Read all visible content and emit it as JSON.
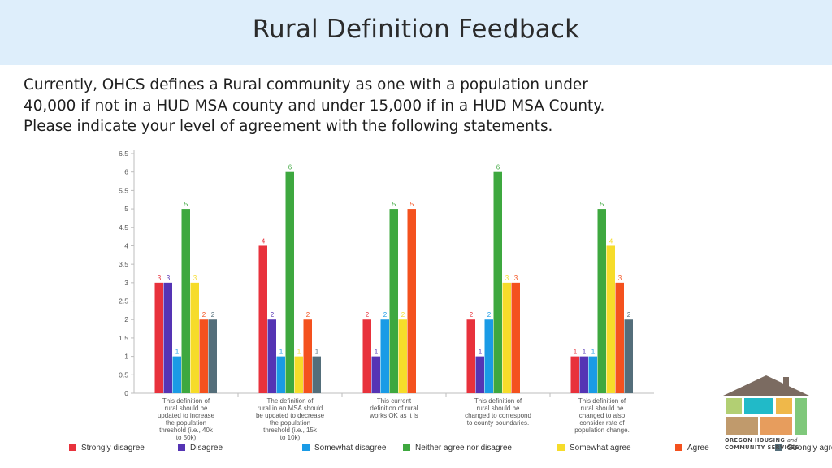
{
  "title": "Rural Definition Feedback",
  "intro": {
    "line1": "Currently, OHCS defines a Rural community as one with a population under",
    "line2": "40,000 if not in a HUD MSA county and under 15,000 if in a HUD MSA County.",
    "line3": "Please indicate your level of agreement with the following statements."
  },
  "logo": {
    "line1": "OREGON HOUSING",
    "and": "and",
    "line2": "COMMUNITY SERVICES"
  },
  "chart_data": {
    "type": "bar",
    "ylim": [
      0,
      6.5
    ],
    "yticks": [
      "0",
      "0.5",
      "1",
      "1.5",
      "2",
      "2.5",
      "3",
      "3.5",
      "4",
      "4.5",
      "5",
      "5.5",
      "6",
      "6.5"
    ],
    "categories": [
      [
        "This definition of",
        "rural should be",
        "updated to increase",
        "the population",
        "threshold (i.e., 40k",
        "to 50k)"
      ],
      [
        "The definition of",
        "rural in an MSA should",
        "be updated to decrease",
        "the population",
        "threshold (i.e., 15k",
        "to 10k)"
      ],
      [
        "This current",
        "definition of rural",
        "works OK as it is"
      ],
      [
        "This definition of",
        "rural should be",
        "changed to correspond",
        "to county boundaries."
      ],
      [
        "This definition of",
        "rural should be",
        "changed to also",
        "consider rate of",
        "population change."
      ]
    ],
    "series": [
      {
        "name": "Strongly disagree",
        "color": "#e8323c",
        "values": [
          3,
          4,
          2,
          2,
          1
        ]
      },
      {
        "name": "Disagree",
        "color": "#5534b4",
        "values": [
          3,
          2,
          1,
          1,
          1
        ]
      },
      {
        "name": "Somewhat disagree",
        "color": "#1a9be6",
        "values": [
          1,
          1,
          2,
          2,
          1
        ]
      },
      {
        "name": "Neither agree nor disagree",
        "color": "#3ea83f",
        "values": [
          5,
          6,
          5,
          6,
          5
        ]
      },
      {
        "name": "Somewhat agree",
        "color": "#f6dc2a",
        "values": [
          3,
          1,
          2,
          3,
          4
        ]
      },
      {
        "name": "Agree",
        "color": "#f4511e",
        "values": [
          2,
          2,
          5,
          3,
          3
        ]
      },
      {
        "name": "Strongly agree",
        "color": "#546e7a",
        "values": [
          2,
          1,
          null,
          null,
          2
        ]
      }
    ],
    "grid": false,
    "legend": "bottom"
  }
}
